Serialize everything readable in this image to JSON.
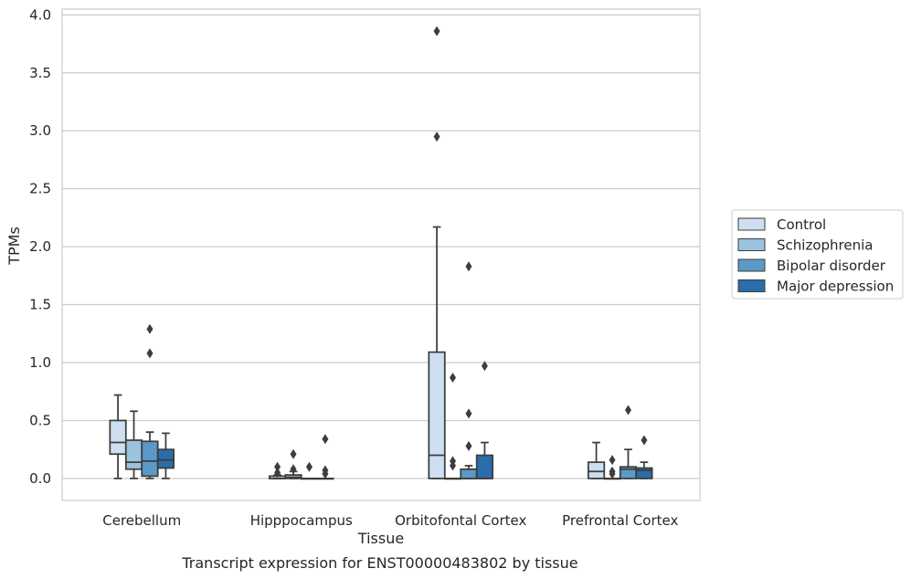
{
  "chart_data": {
    "type": "box",
    "xlabel": "Tissue",
    "ylabel": "TPMs",
    "caption": "Transcript expression for ENST00000483802 by tissue",
    "ylim": [
      -0.19,
      4.05
    ],
    "yticks": [
      "0.0",
      "0.5",
      "1.0",
      "1.5",
      "2.0",
      "2.5",
      "3.0",
      "3.5",
      "4.0"
    ],
    "ytick_values": [
      0,
      0.5,
      1.0,
      1.5,
      2.0,
      2.5,
      3.0,
      3.5,
      4.0
    ],
    "grid": "horizontal",
    "legend_position": "right",
    "categories": [
      "Cerebellum",
      "Hipppocampus",
      "Orbitofontal Cortex",
      "Prefrontal Cortex"
    ],
    "series": [
      {
        "name": "Control",
        "color": "#cddff0",
        "boxes": [
          {
            "whislo": 0.0,
            "q1": 0.21,
            "med": 0.31,
            "q3": 0.5,
            "whishi": 0.72,
            "fliers": []
          },
          {
            "whislo": 0.0,
            "q1": 0.0,
            "med": 0.0,
            "q3": 0.02,
            "whishi": 0.03,
            "fliers": [
              0.05,
              0.1
            ]
          },
          {
            "whislo": 0.0,
            "q1": 0.0,
            "med": 0.2,
            "q3": 1.09,
            "whishi": 2.17,
            "fliers": [
              2.95,
              3.86
            ]
          },
          {
            "whislo": 0.0,
            "q1": 0.0,
            "med": 0.06,
            "q3": 0.14,
            "whishi": 0.31,
            "fliers": []
          }
        ]
      },
      {
        "name": "Schizophrenia",
        "color": "#9bc3de",
        "boxes": [
          {
            "whislo": 0.0,
            "q1": 0.08,
            "med": 0.14,
            "q3": 0.33,
            "whishi": 0.58,
            "fliers": []
          },
          {
            "whislo": 0.0,
            "q1": 0.0,
            "med": 0.01,
            "q3": 0.03,
            "whishi": 0.06,
            "fliers": [
              0.08,
              0.21
            ]
          },
          {
            "whislo": 0.0,
            "q1": 0.0,
            "med": 0.0,
            "q3": 0.0,
            "whishi": 0.0,
            "fliers": [
              0.11,
              0.15,
              0.87
            ]
          },
          {
            "whislo": 0.0,
            "q1": 0.0,
            "med": 0.0,
            "q3": 0.0,
            "whishi": 0.0,
            "fliers": [
              0.04,
              0.06,
              0.16
            ]
          }
        ]
      },
      {
        "name": "Bipolar disorder",
        "color": "#5b9ac7",
        "boxes": [
          {
            "whislo": 0.0,
            "q1": 0.02,
            "med": 0.15,
            "q3": 0.32,
            "whishi": 0.4,
            "fliers": [
              1.08,
              1.29
            ]
          },
          {
            "whislo": 0.0,
            "q1": 0.0,
            "med": 0.0,
            "q3": 0.0,
            "whishi": 0.0,
            "fliers": [
              0.1
            ]
          },
          {
            "whislo": 0.0,
            "q1": 0.0,
            "med": 0.0,
            "q3": 0.08,
            "whishi": 0.11,
            "fliers": [
              0.28,
              0.56,
              1.83
            ]
          },
          {
            "whislo": 0.0,
            "q1": 0.0,
            "med": 0.08,
            "q3": 0.1,
            "whishi": 0.25,
            "fliers": [
              0.59
            ]
          }
        ]
      },
      {
        "name": "Major depression",
        "color": "#2b6cac",
        "boxes": [
          {
            "whislo": 0.0,
            "q1": 0.09,
            "med": 0.16,
            "q3": 0.25,
            "whishi": 0.39,
            "fliers": []
          },
          {
            "whislo": 0.0,
            "q1": 0.0,
            "med": 0.0,
            "q3": 0.0,
            "whishi": 0.0,
            "fliers": [
              0.04,
              0.07,
              0.34
            ]
          },
          {
            "whislo": 0.0,
            "q1": 0.0,
            "med": 0.0,
            "q3": 0.2,
            "whishi": 0.31,
            "fliers": [
              0.97
            ]
          },
          {
            "whislo": 0.0,
            "q1": 0.0,
            "med": 0.07,
            "q3": 0.09,
            "whishi": 0.14,
            "fliers": [
              0.33
            ]
          }
        ]
      }
    ]
  }
}
